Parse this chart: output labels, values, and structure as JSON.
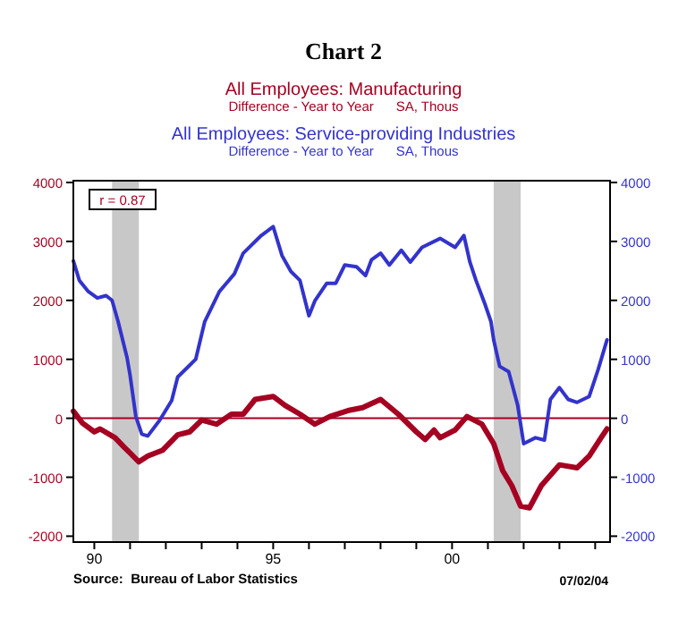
{
  "chart_data": {
    "type": "line",
    "title": "Chart 2",
    "legend": "top",
    "series": [
      {
        "name": "All Employees: Manufacturing",
        "color": "#a50021",
        "axis": "y",
        "x": [
          "1989-06",
          "1989-09",
          "1990-01",
          "1990-03",
          "1990-08",
          "1990-11",
          "1991-01",
          "1991-04",
          "1991-07",
          "1991-12",
          "1992-05",
          "1992-09",
          "1993-01",
          "1993-06",
          "1993-11",
          "1994-03",
          "1994-07",
          "1995-01",
          "1995-05",
          "1995-10",
          "1996-03",
          "1996-08",
          "1997-02",
          "1997-07",
          "1998-01",
          "1998-07",
          "1999-01",
          "1999-04",
          "1999-07",
          "1999-09",
          "2000-02",
          "2000-06",
          "2000-11",
          "2001-03",
          "2001-06",
          "2001-09",
          "2001-12",
          "2002-03",
          "2002-07",
          "2003-01",
          "2003-07",
          "2003-11",
          "2004-03",
          "2004-05"
        ],
        "values": [
          120,
          -80,
          -230,
          -180,
          -330,
          -490,
          -590,
          -740,
          -640,
          -540,
          -280,
          -230,
          -30,
          -100,
          70,
          70,
          320,
          370,
          220,
          70,
          -100,
          30,
          130,
          180,
          320,
          70,
          -230,
          -360,
          -200,
          -330,
          -200,
          30,
          -100,
          -430,
          -890,
          -1140,
          -1490,
          -1520,
          -1140,
          -790,
          -840,
          -640,
          -330,
          -180
        ]
      },
      {
        "name": "All Employees: Service-providing Industries",
        "color": "#3333cc",
        "axis": "y2",
        "x": [
          "1989-06",
          "1989-08",
          "1989-11",
          "1990-02",
          "1990-05",
          "1990-07",
          "1990-09",
          "1990-12",
          "1991-01",
          "1991-03",
          "1991-05",
          "1991-07",
          "1991-11",
          "1992-03",
          "1992-05",
          "1992-09",
          "1992-11",
          "1993-02",
          "1993-07",
          "1993-12",
          "1994-03",
          "1994-09",
          "1995-01",
          "1995-04",
          "1995-07",
          "1995-10",
          "1996-01",
          "1996-03",
          "1996-07",
          "1996-10",
          "1997-01",
          "1997-05",
          "1997-08",
          "1997-10",
          "1998-01",
          "1998-04",
          "1998-08",
          "1998-11",
          "1999-03",
          "1999-09",
          "2000-02",
          "2000-05",
          "2000-07",
          "2000-09",
          "2000-12",
          "2001-02",
          "2001-03",
          "2001-05",
          "2001-08",
          "2001-11",
          "2002-01",
          "2002-05",
          "2002-08",
          "2002-10",
          "2003-01",
          "2003-04",
          "2003-07",
          "2003-11",
          "2004-02",
          "2004-05"
        ],
        "values": [
          2670,
          2340,
          2150,
          2040,
          2080,
          2000,
          1640,
          1030,
          730,
          30,
          -270,
          -300,
          -30,
          300,
          700,
          900,
          1000,
          1640,
          2150,
          2450,
          2800,
          3100,
          3250,
          2760,
          2490,
          2340,
          1740,
          1990,
          2290,
          2290,
          2600,
          2570,
          2420,
          2690,
          2800,
          2600,
          2850,
          2650,
          2900,
          3050,
          2900,
          3100,
          2650,
          2340,
          1940,
          1640,
          1330,
          880,
          790,
          220,
          -430,
          -330,
          -370,
          320,
          520,
          320,
          270,
          370,
          830,
          1330
        ]
      }
    ],
    "xlim": [
      "1989-06",
      "2004-06"
    ],
    "xticks": [
      {
        "value": "1990",
        "label": "90"
      },
      {
        "value": "1991",
        "label": null
      },
      {
        "value": "1992",
        "label": null
      },
      {
        "value": "1993",
        "label": null
      },
      {
        "value": "1994",
        "label": null
      },
      {
        "value": "1995",
        "label": "95"
      },
      {
        "value": "1996",
        "label": null
      },
      {
        "value": "1997",
        "label": null
      },
      {
        "value": "1998",
        "label": null
      },
      {
        "value": "1999",
        "label": null
      },
      {
        "value": "2000",
        "label": "00"
      },
      {
        "value": "2001",
        "label": null
      },
      {
        "value": "2002",
        "label": null
      },
      {
        "value": "2003",
        "label": null
      },
      {
        "value": "2004",
        "label": null
      }
    ],
    "ylim": [
      -2100,
      4030
    ],
    "yticks": [
      -2000,
      -1000,
      0,
      1000,
      2000,
      3000,
      4000
    ],
    "y2lim": [
      -2100,
      4030
    ],
    "y2ticks": [
      -2000,
      -1000,
      0,
      1000,
      2000,
      3000,
      4000
    ],
    "ref_lines": [
      {
        "axis": "y",
        "value": 0,
        "color": "#a50021"
      }
    ],
    "bands": [
      {
        "axis": "x",
        "from": "1990-07",
        "to": "1991-04",
        "color": "#c8c8c8"
      },
      {
        "axis": "x",
        "from": "2001-03",
        "to": "2001-12",
        "color": "#c8c8c8"
      }
    ],
    "annotations": [
      "r = 0.87",
      "Difference - Year to Year      SA, Thous",
      "Difference - Year to Year      SA, Thous",
      "Source:  Bureau of Labor Statistics",
      "07/02/04"
    ]
  }
}
